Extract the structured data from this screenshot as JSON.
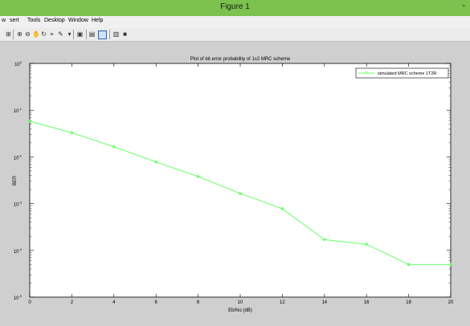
{
  "window": {
    "title": "Figure 1",
    "minimize": "-"
  },
  "menu": [
    "w",
    "sert",
    "Tools",
    "Desktop",
    "Window",
    "Help"
  ],
  "toolbar_icons": [
    "new-figure-icon",
    "zoom-in-icon",
    "zoom-out-icon",
    "pan-icon",
    "rotate-icon",
    "data-cursor-icon",
    "brush-icon",
    "link-icon",
    "colorbar-icon",
    "legend-icon",
    "hide-plot-tools-icon",
    "show-plot-tools-icon"
  ],
  "chart_data": {
    "type": "line",
    "title": "Plot of bit error probability of 1x2 MRC scheme",
    "xlabel": "Eb/No (dB)",
    "ylabel": "BER",
    "xlim": [
      0,
      20
    ],
    "ylim": [
      1e-05,
      1
    ],
    "yscale": "log",
    "xticks": [
      "0",
      "2",
      "4",
      "6",
      "8",
      "10",
      "12",
      "14",
      "16",
      "18",
      "20"
    ],
    "yticks": [
      {
        "base": "10",
        "exp": "0"
      },
      {
        "base": "10",
        "exp": "-1"
      },
      {
        "base": "10",
        "exp": "-2"
      },
      {
        "base": "10",
        "exp": "-3"
      },
      {
        "base": "10",
        "exp": "-4"
      },
      {
        "base": "10",
        "exp": "-5"
      }
    ],
    "grid": false,
    "legend_position": "top-right",
    "series": [
      {
        "name": "simulated MRC scheme 1T2R",
        "color": "#66ff66",
        "x": [
          0,
          2,
          4,
          6,
          8,
          10,
          12,
          14,
          16,
          18,
          20
        ],
        "y": [
          0.058,
          0.033,
          0.0165,
          0.0078,
          0.0038,
          0.00165,
          0.00078,
          0.00017,
          0.000135,
          5e-05,
          5e-05
        ]
      }
    ]
  }
}
